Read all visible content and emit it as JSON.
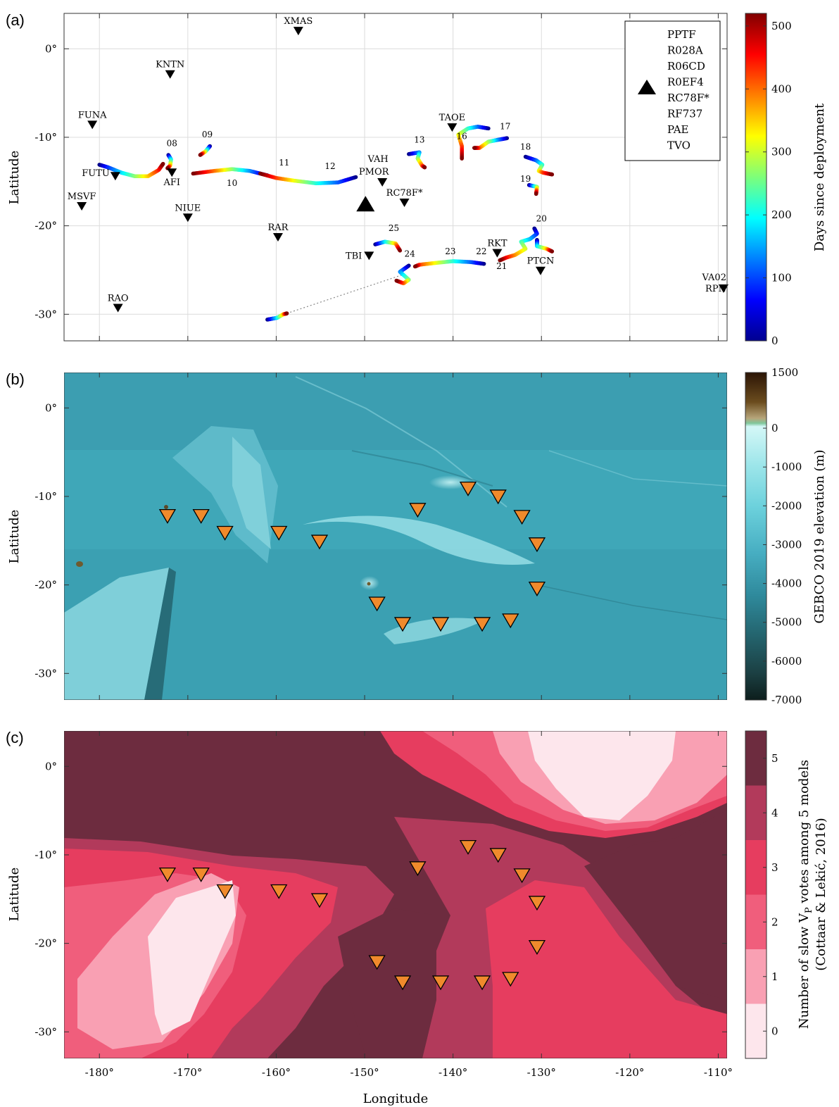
{
  "figure": {
    "xaxis_label": "Longitude",
    "yaxis_label": "Latitude",
    "xlim": [
      -184,
      -109
    ],
    "ylim": [
      -33,
      4
    ],
    "xticks": [
      -180,
      -170,
      -160,
      -150,
      -140,
      -130,
      -120,
      -110
    ],
    "yticks": [
      0,
      -10,
      -20,
      -30
    ],
    "xtick_labels": [
      "-180°",
      "-170°",
      "-160°",
      "-150°",
      "-140°",
      "-130°",
      "-120°",
      "-110°"
    ],
    "ytick_labels": [
      "0°",
      "-10°",
      "-20°",
      "-30°"
    ]
  },
  "panels": [
    {
      "id": "a",
      "label": "(a)",
      "colorbar": {
        "title": "Days since deployment",
        "range": [
          0,
          520
        ],
        "ticks": [
          0,
          100,
          200,
          300,
          400,
          500
        ],
        "tick_labels": [
          "0",
          "100",
          "200",
          "300",
          "400",
          "500"
        ],
        "colormap": "jet"
      },
      "legend": {
        "symbol": "black up-triangle",
        "entries": [
          "PPTF",
          "R028A",
          "R06CD",
          "R0EF4",
          "RC78F*",
          "RF737",
          "PAE",
          "TVO"
        ]
      },
      "triangle_lonlat": [
        -149.9,
        -17.5
      ],
      "stations": [
        {
          "name": "XMAS",
          "lon": -157.5,
          "lat": 2.0
        },
        {
          "name": "KNTN",
          "lon": -172.0,
          "lat": -2.9
        },
        {
          "name": "FUNA",
          "lon": -180.8,
          "lat": -8.6
        },
        {
          "name": "TAOE",
          "lon": -140.1,
          "lat": -8.9
        },
        {
          "name": "FUTU",
          "lon": -178.2,
          "lat": -14.4
        },
        {
          "name": "AFI",
          "lon": -171.8,
          "lat": -14.0
        },
        {
          "name": "MSVF",
          "lon": -182.0,
          "lat": -17.8
        },
        {
          "name": "NIUE",
          "lon": -170.0,
          "lat": -19.1
        },
        {
          "name": "RAR",
          "lon": -159.8,
          "lat": -21.3
        },
        {
          "name": "VAH",
          "lon": -148.0,
          "lat": -15.1
        },
        {
          "name": "PMOR",
          "lon": -148.0,
          "lat": -15.1
        },
        {
          "name": "RC78F*",
          "lon": -145.5,
          "lat": -17.4
        },
        {
          "name": "TBI",
          "lon": -149.5,
          "lat": -23.4
        },
        {
          "name": "RKT",
          "lon": -135.0,
          "lat": -23.1
        },
        {
          "name": "PTCN",
          "lon": -130.1,
          "lat": -25.1
        },
        {
          "name": "RAO",
          "lon": -177.9,
          "lat": -29.3
        },
        {
          "name": "VA02",
          "lon": -109.4,
          "lat": -27.1
        },
        {
          "name": "RPN",
          "lon": -109.4,
          "lat": -27.1
        }
      ],
      "float_labels": [
        {
          "id": "08",
          "lon": -171.8,
          "lat": -11.0
        },
        {
          "id": "09",
          "lon": -167.8,
          "lat": -10.0
        },
        {
          "id": "10",
          "lon": -165.0,
          "lat": -15.5
        },
        {
          "id": "11",
          "lon": -159.1,
          "lat": -13.2
        },
        {
          "id": "12",
          "lon": -153.9,
          "lat": -13.6
        },
        {
          "id": "13",
          "lon": -143.8,
          "lat": -10.6
        },
        {
          "id": "16",
          "lon": -139.0,
          "lat": -10.2
        },
        {
          "id": "17",
          "lon": -134.1,
          "lat": -9.1
        },
        {
          "id": "18",
          "lon": -131.8,
          "lat": -11.4
        },
        {
          "id": "19",
          "lon": -131.8,
          "lat": -15.0
        },
        {
          "id": "20",
          "lon": -130.0,
          "lat": -19.5
        },
        {
          "id": "21",
          "lon": -134.5,
          "lat": -24.9
        },
        {
          "id": "22",
          "lon": -136.8,
          "lat": -23.2
        },
        {
          "id": "23",
          "lon": -140.3,
          "lat": -23.2
        },
        {
          "id": "24",
          "lon": -144.9,
          "lat": -23.5
        },
        {
          "id": "25",
          "lon": -146.7,
          "lat": -20.6
        }
      ],
      "float_tracks": [
        [
          [
            -180.0,
            -13.1
          ],
          [
            -179.0,
            -13.4
          ],
          [
            -177.5,
            -14.0
          ],
          [
            -176.0,
            -14.4
          ],
          [
            -174.5,
            -14.4
          ],
          [
            -173.3,
            -13.7
          ],
          [
            -172.8,
            -13.0
          ]
        ],
        [
          [
            -172.2,
            -12.0
          ],
          [
            -171.9,
            -12.5
          ],
          [
            -172.0,
            -13.2
          ],
          [
            -172.3,
            -13.5
          ]
        ],
        [
          [
            -167.5,
            -11.0
          ],
          [
            -168.0,
            -11.6
          ],
          [
            -168.6,
            -12.0
          ]
        ],
        [
          [
            -161.0,
            -14.3
          ],
          [
            -163.0,
            -13.8
          ],
          [
            -165.0,
            -13.6
          ],
          [
            -167.0,
            -13.8
          ],
          [
            -169.4,
            -14.1
          ]
        ],
        [
          [
            -151.0,
            -14.5
          ],
          [
            -153.0,
            -15.1
          ],
          [
            -155.5,
            -15.2
          ],
          [
            -158.0,
            -14.9
          ],
          [
            -160.0,
            -14.6
          ],
          [
            -161.8,
            -14.1
          ]
        ],
        [
          [
            -145.0,
            -11.9
          ],
          [
            -143.8,
            -11.7
          ],
          [
            -144.0,
            -12.4
          ],
          [
            -143.5,
            -13.2
          ],
          [
            -143.2,
            -13.4
          ]
        ],
        [
          [
            -136.0,
            -9.0
          ],
          [
            -137.2,
            -8.8
          ],
          [
            -138.3,
            -9.0
          ],
          [
            -139.4,
            -9.7
          ],
          [
            -139.0,
            -11.0
          ],
          [
            -139.0,
            -12.4
          ]
        ],
        [
          [
            -133.9,
            -10.1
          ],
          [
            -135.0,
            -10.3
          ],
          [
            -136.0,
            -10.5
          ],
          [
            -137.0,
            -11.2
          ],
          [
            -137.6,
            -11.2
          ]
        ],
        [
          [
            -131.8,
            -12.2
          ],
          [
            -130.6,
            -12.6
          ],
          [
            -129.9,
            -13.1
          ],
          [
            -130.3,
            -13.8
          ],
          [
            -129.8,
            -14.0
          ],
          [
            -128.8,
            -14.2
          ]
        ],
        [
          [
            -131.4,
            -15.4
          ],
          [
            -130.5,
            -15.6
          ],
          [
            -130.6,
            -16.4
          ]
        ],
        [
          [
            -130.8,
            -20.3
          ],
          [
            -130.5,
            -20.9
          ],
          [
            -131.3,
            -21.5
          ],
          [
            -132.3,
            -21.8
          ],
          [
            -131.8,
            -22.6
          ],
          [
            -133.0,
            -23.3
          ],
          [
            -134.0,
            -23.6
          ],
          [
            -134.7,
            -23.9
          ]
        ],
        [
          [
            -130.5,
            -21.6
          ],
          [
            -130.5,
            -22.3
          ],
          [
            -129.4,
            -22.6
          ],
          [
            -128.8,
            -22.9
          ]
        ],
        [
          [
            -136.5,
            -24.3
          ],
          [
            -138.0,
            -24.1
          ],
          [
            -140.0,
            -24.0
          ],
          [
            -142.0,
            -24.2
          ],
          [
            -143.8,
            -24.4
          ],
          [
            -144.3,
            -24.6
          ]
        ],
        [
          [
            -145.0,
            -24.5
          ],
          [
            -146.0,
            -25.2
          ],
          [
            -145.0,
            -26.1
          ],
          [
            -145.6,
            -26.5
          ],
          [
            -146.4,
            -26.2
          ]
        ],
        [
          [
            -148.8,
            -22.1
          ],
          [
            -147.7,
            -21.8
          ],
          [
            -146.5,
            -22.0
          ],
          [
            -146.0,
            -22.8
          ]
        ],
        [
          [
            -161.0,
            -30.6
          ],
          [
            -159.9,
            -30.4
          ],
          [
            -159.2,
            -30.0
          ],
          [
            -158.8,
            -29.9
          ]
        ]
      ],
      "dotted_line": [
        [
          -158.8,
          -29.9
        ],
        [
          -145.6,
          -25.5
        ]
      ]
    },
    {
      "id": "b",
      "label": "(b)",
      "colorbar": {
        "title": "GEBCO 2019 elevation (m)",
        "ticks": [
          1500,
          0,
          -1000,
          -2000,
          -3000,
          -4000,
          -5000,
          -6000,
          -7000
        ],
        "tick_labels": [
          "1500",
          "0",
          "-1000",
          "-2000",
          "-3000",
          "-4000",
          "-5000",
          "-6000",
          "-7000"
        ]
      }
    },
    {
      "id": "c",
      "label": "(c)",
      "colorbar": {
        "title_line1": "Number of slow V",
        "title_sub": "P",
        "title_line1b": " votes among 5 models",
        "title_line2": "(Cottaar & Lekić, 2016)",
        "ticks": [
          0,
          1,
          2,
          3,
          4,
          5
        ],
        "tick_labels": [
          "0",
          "1",
          "2",
          "3",
          "4",
          "5"
        ],
        "colors": [
          "#fde6ec",
          "#f9a0b3",
          "#f05e7c",
          "#e63d5f",
          "#b23a5b",
          "#6d2c3f"
        ]
      }
    }
  ],
  "float_positions": [
    [
      -172.3,
      -12.2
    ],
    [
      -168.5,
      -12.2
    ],
    [
      -165.8,
      -14.1
    ],
    [
      -159.7,
      -14.1
    ],
    [
      -155.1,
      -15.1
    ],
    [
      -144.0,
      -11.5
    ],
    [
      -138.3,
      -9.1
    ],
    [
      -134.9,
      -10.0
    ],
    [
      -132.2,
      -12.3
    ],
    [
      -130.5,
      -15.4
    ],
    [
      -130.5,
      -20.4
    ],
    [
      -148.6,
      -22.1
    ],
    [
      -145.7,
      -24.4
    ],
    [
      -141.4,
      -24.4
    ],
    [
      -136.7,
      -24.4
    ],
    [
      -133.5,
      -24.0
    ]
  ]
}
